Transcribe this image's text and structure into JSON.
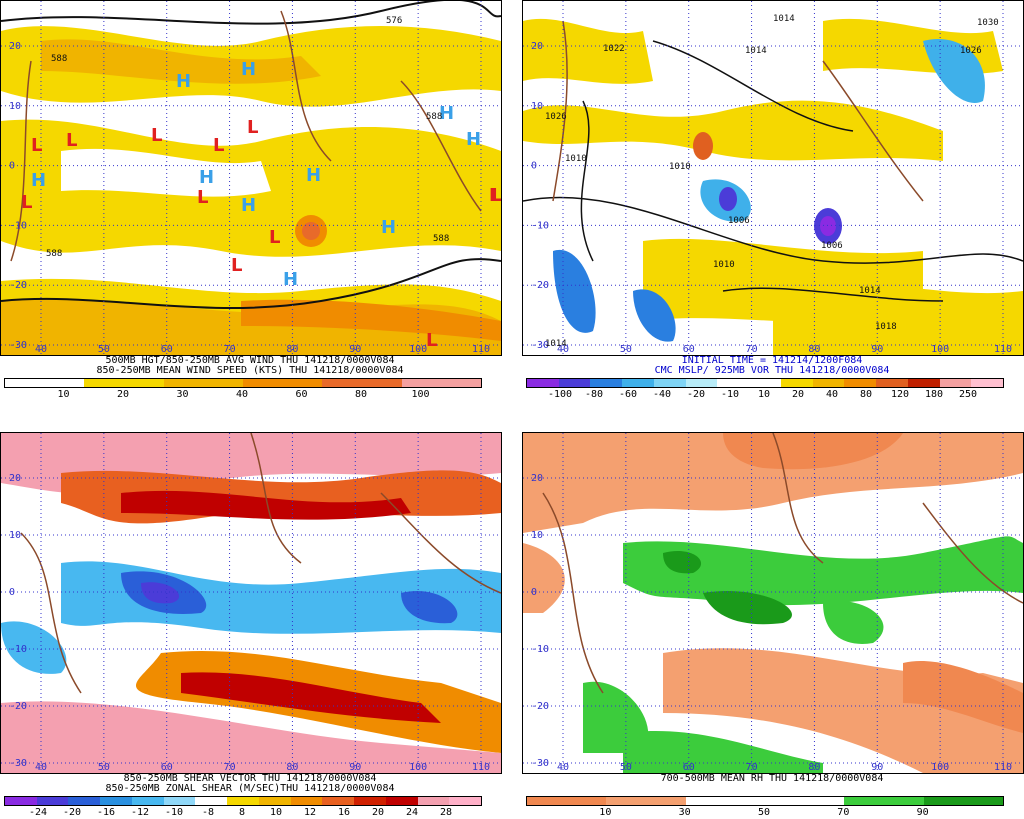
{
  "panels": [
    {
      "id": "tl",
      "captions": [
        "500MB HGT/850-250MB AVG WIND THU 141218/0000V084",
        "850-250MB MEAN WIND SPEED (KTS) THU 141218/0000V084"
      ],
      "caption_color": "#000000",
      "colorbar": {
        "colors": [
          "#ffffff",
          "#ffffff",
          "#f5d800",
          "#f5d800",
          "#f0b400",
          "#f0b400",
          "#f08c00",
          "#f08c00",
          "#e86a2a",
          "#e86a2a",
          "#f4a0a0",
          "#f4a0a0"
        ],
        "ticks": [
          "10",
          "20",
          "30",
          "40",
          "60",
          "80",
          "100"
        ]
      },
      "lat_labels": [
        "20",
        "10",
        "0",
        "-10",
        "-20",
        "-30"
      ],
      "lon_labels": [
        "40",
        "50",
        "60",
        "70",
        "80",
        "90",
        "100",
        "110"
      ],
      "contour_labels": [
        "588",
        "588",
        "588",
        "588",
        "576"
      ],
      "H_labels": [
        "H",
        "H",
        "H",
        "H",
        "H",
        "H",
        "H",
        "H",
        "H",
        "H"
      ],
      "L_labels": [
        "L",
        "L",
        "L",
        "L",
        "L",
        "L",
        "L",
        "L",
        "L",
        "L",
        "L",
        "L",
        "L"
      ]
    },
    {
      "id": "tr",
      "captions": [
        "INITIAL TIME = 141214/1200F084",
        "CMC MSLP/ 925MB VOR THU 141218/0000V084"
      ],
      "caption_color": "#0000cc",
      "colorbar": {
        "colors": [
          "#8a2be2",
          "#4b3cd8",
          "#2a7fe0",
          "#3fb0ea",
          "#7fd4f5",
          "#b8ecf8",
          "#ffffff",
          "#ffffff",
          "#f5d800",
          "#f0b400",
          "#f08c00",
          "#e06020",
          "#c02000",
          "#f4a0a0",
          "#ffc0d0"
        ],
        "ticks": [
          "-100",
          "-80",
          "-60",
          "-40",
          "-20",
          "-10",
          "10",
          "20",
          "40",
          "80",
          "120",
          "180",
          "250"
        ]
      },
      "lat_labels": [
        "20",
        "10",
        "0",
        "-10",
        "-20",
        "-30"
      ],
      "lon_labels": [
        "40",
        "50",
        "60",
        "70",
        "80",
        "90",
        "100",
        "110"
      ],
      "isobar_labels": [
        "1022",
        "1014",
        "1014",
        "1010",
        "1006",
        "1006",
        "1010",
        "1014",
        "1018",
        "1014",
        "1026",
        "1030",
        "1026",
        "1010"
      ]
    },
    {
      "id": "bl",
      "captions": [
        "850-250MB SHEAR VECTOR THU 141218/0000V084",
        "850-250MB ZONAL SHEAR (M/SEC)THU 141218/0000V084"
      ],
      "caption_color": "#000000",
      "colorbar": {
        "colors": [
          "#8a2be2",
          "#4b3cd8",
          "#2a5fd8",
          "#2a90e0",
          "#48b8f0",
          "#90d8f8",
          "#ffffff",
          "#f5d800",
          "#f0b400",
          "#f08c00",
          "#e86020",
          "#d02000",
          "#c00000",
          "#f4a0b0",
          "#ffb0c8"
        ],
        "ticks": [
          "-24",
          "-20",
          "-16",
          "-12",
          "-10",
          "-8",
          "8",
          "10",
          "12",
          "16",
          "20",
          "24",
          "28"
        ]
      },
      "lat_labels": [
        "20",
        "10",
        "0",
        "-10",
        "-20",
        "-30"
      ],
      "lon_labels": [
        "40",
        "50",
        "60",
        "70",
        "80",
        "90",
        "100",
        "110"
      ]
    },
    {
      "id": "br",
      "captions": [
        "700-500MB MEAN RH THU 141218/0000V084"
      ],
      "caption_color": "#000000",
      "colorbar": {
        "colors": [
          "#f08850",
          "#f08850",
          "#f4a070",
          "#f4a070",
          "#ffffff",
          "#ffffff",
          "#ffffff",
          "#ffffff",
          "#3ccc3c",
          "#3ccc3c",
          "#1a9a1a",
          "#1a9a1a"
        ],
        "ticks": [
          "10",
          "30",
          "50",
          "70",
          "90"
        ]
      },
      "lat_labels": [
        "20",
        "10",
        "0",
        "-10",
        "-20",
        "-30"
      ],
      "lon_labels": [
        "40",
        "50",
        "60",
        "70",
        "80",
        "90",
        "100",
        "110"
      ]
    }
  ]
}
